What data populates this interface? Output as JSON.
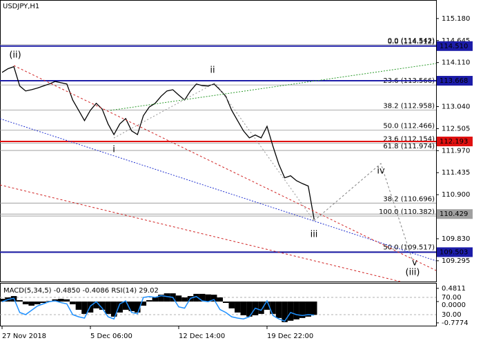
{
  "chart_data": [
    {
      "type": "line",
      "title": "USDJPY,H1",
      "color": "#000000",
      "categories": [
        "27 Nov 2018",
        null,
        null,
        null,
        null,
        null,
        null,
        null,
        null,
        null,
        null,
        null,
        null,
        null,
        null,
        "5 Dec 06:00",
        null,
        null,
        null,
        null,
        null,
        null,
        null,
        null,
        null,
        null,
        null,
        null,
        null,
        null,
        "12 Dec 14:00",
        null,
        null,
        null,
        null,
        null,
        null,
        null,
        null,
        null,
        null,
        null,
        null,
        null,
        null,
        "19 Dec 22:00",
        null,
        null,
        null,
        null,
        null,
        null,
        null,
        null
      ],
      "values": [
        113.87,
        113.96,
        114.01,
        113.54,
        113.42,
        113.45,
        113.49,
        113.54,
        113.59,
        113.65,
        113.62,
        113.59,
        113.2,
        112.95,
        112.7,
        112.95,
        113.12,
        112.98,
        112.62,
        112.36,
        112.62,
        112.75,
        112.45,
        112.36,
        112.82,
        113.03,
        113.12,
        113.29,
        113.42,
        113.45,
        113.32,
        113.2,
        113.42,
        113.59,
        113.55,
        113.54,
        113.59,
        113.45,
        113.29,
        112.95,
        112.7,
        112.45,
        112.28,
        112.35,
        112.28,
        112.56,
        112.08,
        111.64,
        111.31,
        111.36,
        111.24,
        111.17,
        111.11,
        110.3
      ],
      "ylim": [
        108.79,
        115.63
      ],
      "yticks": [
        {
          "value": 115.18,
          "label": "115.180"
        },
        {
          "value": 114.645,
          "label": "114.645"
        },
        {
          "value": 114.11,
          "label": "114.110"
        },
        {
          "value": 113.04,
          "label": "113.040"
        },
        {
          "value": 112.505,
          "label": "112.505"
        },
        {
          "value": 111.97,
          "label": "111.970"
        },
        {
          "value": 111.435,
          "label": "111.435"
        },
        {
          "value": 110.9,
          "label": "110.900"
        },
        {
          "value": 109.83,
          "label": "109.830"
        },
        {
          "value": 109.295,
          "label": "109.295"
        }
      ],
      "levels": [
        {
          "value": 114.51,
          "label": "114.510",
          "color": "#1c1ca8"
        },
        {
          "value": 113.668,
          "label": "113.668",
          "color": "#1c1ca8"
        },
        {
          "value": 112.193,
          "label": "112.193",
          "color": "#e01010"
        },
        {
          "value": 110.429,
          "label": "110.429",
          "color": "#a0a0a0"
        },
        {
          "value": 109.503,
          "label": "109.503",
          "color": "#1c1ca8"
        }
      ],
      "fib_levels": [
        {
          "value": 114.542,
          "label": "0.0 (114.542)"
        },
        {
          "value": 114.512,
          "label": "0.0 (114.512)"
        },
        {
          "value": 113.566,
          "label": "23.6 (113.566)"
        },
        {
          "value": 112.958,
          "label": "38.2 (112.958)"
        },
        {
          "value": 112.466,
          "label": "50.0 (112.466)"
        },
        {
          "value": 112.154,
          "label": "23.6 (112.154)"
        },
        {
          "value": 111.974,
          "label": "61.8 (111.974)"
        },
        {
          "value": 110.696,
          "label": "38.2 (110.696)"
        },
        {
          "value": 110.382,
          "label": "100.0 (110.382)"
        },
        {
          "value": 109.517,
          "label": "50.0 (109.517)"
        }
      ],
      "annotations": [
        {
          "text": "(ii)",
          "color": "#cc0000"
        },
        {
          "text": "ii",
          "color": "#808080"
        },
        {
          "text": "i",
          "color": "#808080"
        },
        {
          "text": "iii",
          "color": "#808080"
        },
        {
          "text": "iv",
          "color": "#808080"
        },
        {
          "text": "v",
          "color": "#808080"
        },
        {
          "text": "(iii)",
          "color": "#cc0000"
        }
      ]
    },
    {
      "type": "bar",
      "title": "MACD(5,34,5) -0.4850 -0.4086 RSI(14) 29.02",
      "ylim": [
        -0.88,
        0.68
      ],
      "yticks": [
        0.4811,
        {
          "value": 0,
          "label": "0.0000"
        },
        -0.7774
      ],
      "y2lim": [
        4.4,
        103.6
      ],
      "y2ticks": [
        {
          "value": 70,
          "label": "70.00"
        },
        {
          "value": 30,
          "label": "30.00"
        }
      ],
      "series": [
        {
          "color": "#000000",
          "values": [
            0.1,
            0.15,
            0.2,
            0.05,
            -0.1,
            -0.15,
            -0.1,
            -0.05,
            0.02,
            0.08,
            0.1,
            0.08,
            -0.1,
            -0.3,
            -0.45,
            -0.4,
            -0.25,
            -0.3,
            -0.45,
            -0.55,
            -0.4,
            -0.3,
            -0.35,
            -0.4,
            -0.15,
            0.05,
            0.15,
            0.25,
            0.3,
            0.3,
            0.22,
            0.15,
            0.2,
            0.28,
            0.28,
            0.26,
            0.25,
            0.15,
            -0.05,
            -0.25,
            -0.4,
            -0.5,
            -0.55,
            -0.5,
            -0.45,
            -0.3,
            -0.45,
            -0.6,
            -0.75,
            -0.7,
            -0.65,
            -0.6,
            -0.55,
            -0.485
          ]
        },
        {
          "color": "#1e90ff",
          "axis": "y2",
          "values": [
            60,
            65,
            68,
            35,
            30,
            40,
            50,
            55,
            60,
            62,
            58,
            55,
            30,
            25,
            22,
            50,
            60,
            45,
            25,
            20,
            55,
            62,
            35,
            32,
            70,
            72,
            70,
            74,
            72,
            70,
            48,
            45,
            68,
            72,
            62,
            60,
            65,
            42,
            35,
            25,
            22,
            20,
            25,
            45,
            40,
            62,
            28,
            20,
            15,
            35,
            30,
            28,
            30,
            29.02
          ]
        }
      ]
    }
  ]
}
